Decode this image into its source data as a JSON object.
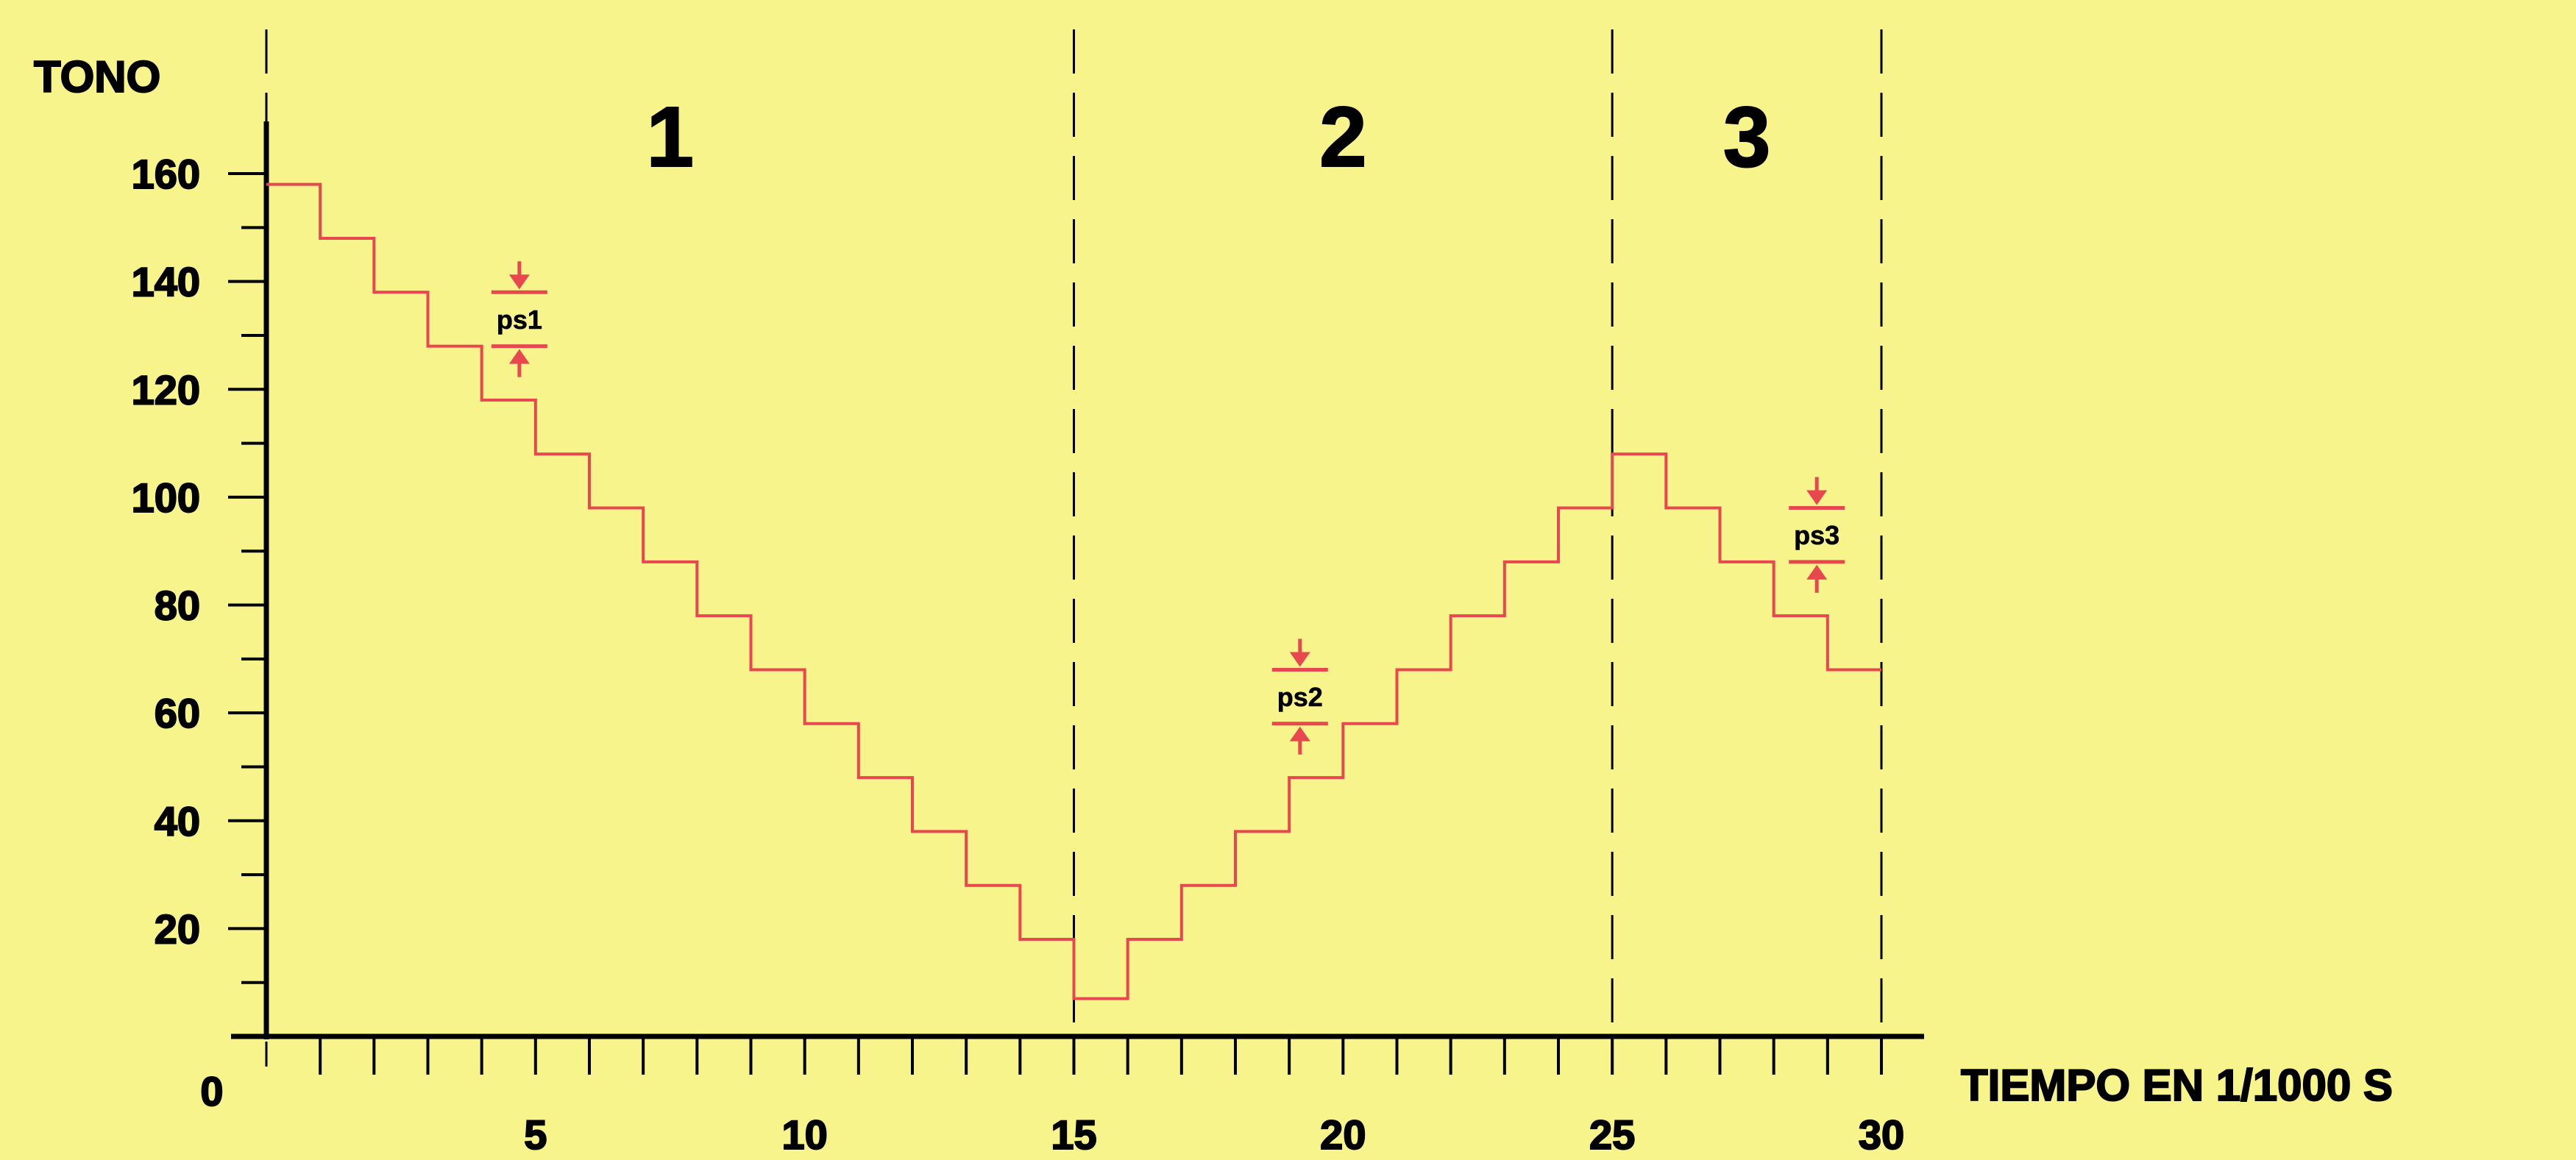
{
  "chart_data": {
    "type": "line",
    "ylabel": "TONO",
    "xlabel": "TIEMPO EN 1/1000 S",
    "xlim": [
      0,
      30
    ],
    "ylim": [
      0,
      160
    ],
    "xticks": [
      0,
      5,
      10,
      15,
      20,
      25,
      30
    ],
    "x_tick_labels": [
      "0",
      "5",
      "10",
      "15",
      "20",
      "25",
      "30"
    ],
    "yticks": [
      20,
      40,
      60,
      80,
      100,
      120,
      140,
      160
    ],
    "y_tick_labels": [
      "20",
      "40",
      "60",
      "80",
      "100",
      "120",
      "140",
      "160"
    ],
    "section_boundaries": [
      0,
      15,
      25,
      30
    ],
    "sections": [
      {
        "label": "1",
        "x_center": 7.5
      },
      {
        "label": "2",
        "x_center": 20
      },
      {
        "label": "3",
        "x_center": 27.5
      }
    ],
    "series": [
      {
        "color": "#e8474f",
        "step_edges": [
          0,
          1,
          2,
          3,
          4,
          5,
          6,
          7,
          8,
          9,
          10,
          11,
          12,
          13,
          14,
          15,
          16,
          17,
          18,
          19,
          20,
          21,
          22,
          23,
          24,
          25,
          26,
          27,
          28,
          29,
          30
        ],
        "values": [
          158,
          148,
          138,
          128,
          118,
          108,
          98,
          88,
          78,
          68,
          58,
          48,
          38,
          28,
          18,
          7,
          18,
          28,
          38,
          48,
          58,
          68,
          78,
          88,
          98,
          108,
          98,
          88,
          78,
          68,
          60
        ]
      }
    ],
    "annotations": [
      {
        "label": "ps1",
        "x": 4.7,
        "y_low": 128,
        "y_high": 138
      },
      {
        "label": "ps2",
        "x": 19.2,
        "y_low": 58,
        "y_high": 68
      },
      {
        "label": "ps3",
        "x": 28.8,
        "y_low": 88,
        "y_high": 98
      }
    ]
  },
  "colors": {
    "background": "#f8f48c",
    "axis": "#000000",
    "series": "#e8474f",
    "annotation": "#e8474f"
  }
}
